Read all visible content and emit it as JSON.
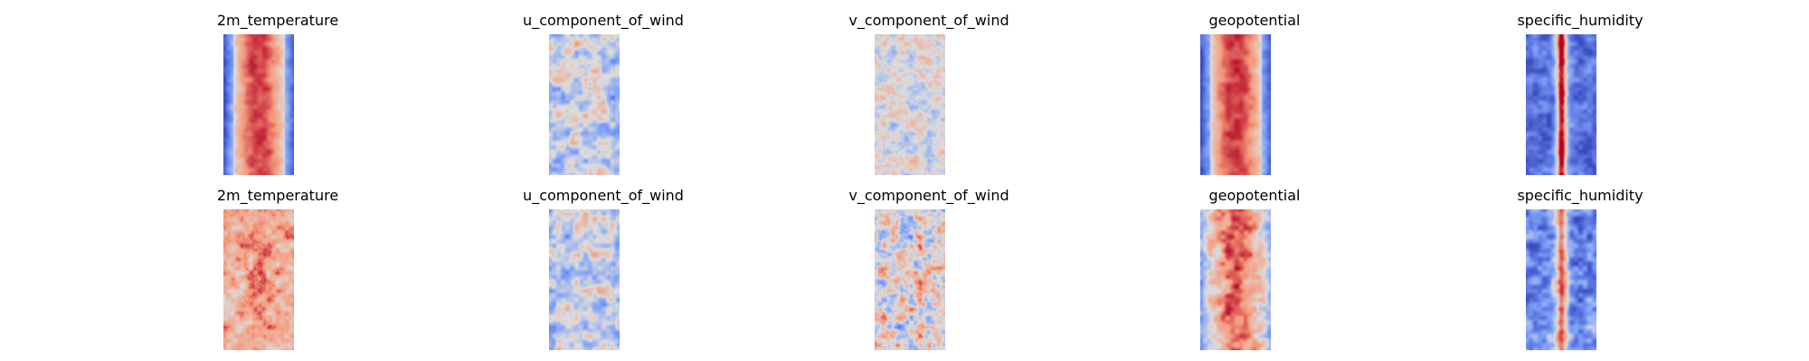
{
  "figure": {
    "rows": [
      {
        "panels": [
          {
            "title": "2m_temperature",
            "pattern": "band_warm",
            "seed": 11
          },
          {
            "title": "u_component_of_wind",
            "pattern": "wind_cool",
            "seed": 23
          },
          {
            "title": "v_component_of_wind",
            "pattern": "noise_neutral",
            "seed": 37
          },
          {
            "title": "geopotential",
            "pattern": "band_warm",
            "seed": 41
          },
          {
            "title": "specific_humidity",
            "pattern": "narrow_core",
            "seed": 53
          }
        ]
      },
      {
        "panels": [
          {
            "title": "2m_temperature",
            "pattern": "full_warm",
            "seed": 67
          },
          {
            "title": "u_component_of_wind",
            "pattern": "wind_cool",
            "seed": 79
          },
          {
            "title": "v_component_of_wind",
            "pattern": "noise_strong",
            "seed": 83
          },
          {
            "title": "geopotential",
            "pattern": "band_warm_noisy",
            "seed": 97
          },
          {
            "title": "specific_humidity",
            "pattern": "narrow_core_noisy",
            "seed": 101
          }
        ]
      }
    ]
  },
  "chart_data": {
    "type": "heatmap",
    "colormap": "coolwarm",
    "grid": false,
    "axes_visible": false,
    "panels": [
      {
        "row": 1,
        "title": "2m_temperature"
      },
      {
        "row": 1,
        "title": "u_component_of_wind"
      },
      {
        "row": 1,
        "title": "v_component_of_wind"
      },
      {
        "row": 1,
        "title": "geopotential"
      },
      {
        "row": 1,
        "title": "specific_humidity"
      },
      {
        "row": 2,
        "title": "2m_temperature"
      },
      {
        "row": 2,
        "title": "u_component_of_wind"
      },
      {
        "row": 2,
        "title": "v_component_of_wind"
      },
      {
        "row": 2,
        "title": "geopotential"
      },
      {
        "row": 2,
        "title": "specific_humidity"
      }
    ]
  }
}
